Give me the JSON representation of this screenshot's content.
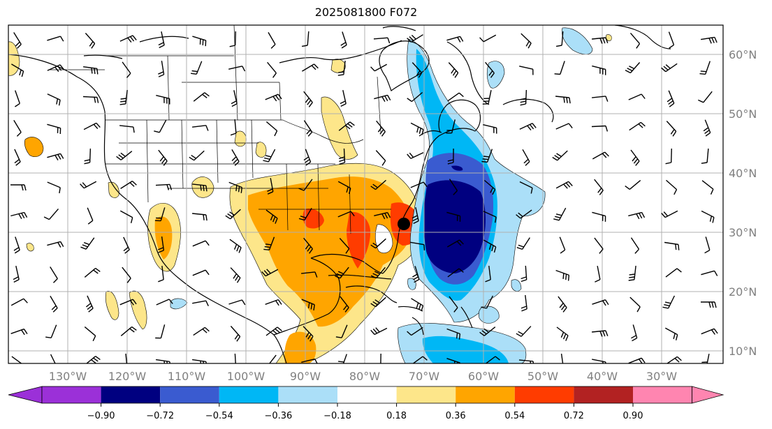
{
  "title": "2025081800 F072",
  "longitude_labels": [
    "130°W",
    "120°W",
    "110°W",
    "100°W",
    "90°W",
    "80°W",
    "70°W",
    "60°W",
    "50°W",
    "40°W",
    "30°W"
  ],
  "latitude_labels": [
    "60°N",
    "50°N",
    "40°N",
    "30°N",
    "20°N",
    "10°N"
  ],
  "colorbar": {
    "colors": [
      "#9b30d8",
      "#000080",
      "#3a5bd0",
      "#00b7f5",
      "#abdff8",
      "#ffffff",
      "#fde68a",
      "#ffa500",
      "#ff3c00",
      "#b22222",
      "#ff85b0"
    ],
    "tick_labels": [
      "−0.90",
      "−0.72",
      "−0.54",
      "−0.36",
      "−0.18",
      "0.18",
      "0.36",
      "0.54",
      "0.72",
      "0.90"
    ]
  },
  "marker": {
    "label": "",
    "lon": -75,
    "lat": 31.5
  }
}
